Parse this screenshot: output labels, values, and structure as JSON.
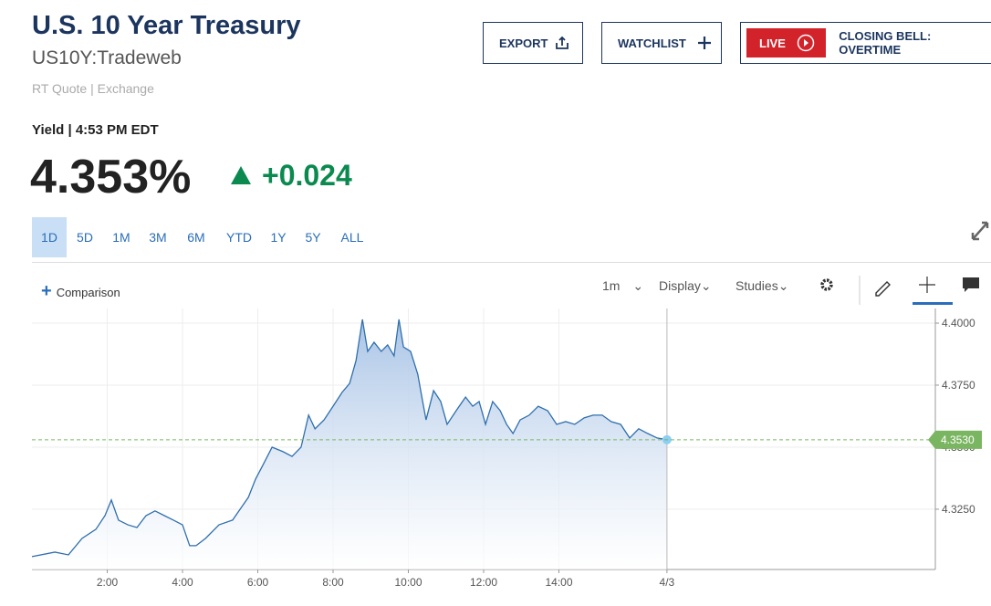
{
  "header": {
    "title": "U.S. 10 Year Treasury",
    "symbol": "US10Y:Tradeweb",
    "quote_source": "RT Quote | Exchange",
    "buttons": {
      "export": "EXPORT",
      "watchlist": "WATCHLIST",
      "live": "LIVE",
      "live_show": "CLOSING BELL: OVERTIME"
    }
  },
  "quote": {
    "label": "Yield | 4:53 PM EDT",
    "price": "4.353%",
    "change": "+0.024"
  },
  "ranges": [
    "1D",
    "5D",
    "1M",
    "3M",
    "6M",
    "YTD",
    "1Y",
    "5Y",
    "ALL"
  ],
  "toolbar": {
    "comparison": "Comparison",
    "interval": "1m",
    "display": "Display",
    "studies": "Studies"
  },
  "chart_data": {
    "type": "line",
    "x": [
      0,
      0.61,
      0.97,
      1.33,
      1.7,
      1.94,
      2.11,
      2.3,
      2.55,
      2.79,
      3.03,
      3.27,
      3.52,
      3.76,
      4.0,
      4.19,
      4.36,
      4.61,
      4.97,
      5.33,
      5.58,
      5.75,
      5.94,
      6.13,
      6.38,
      6.67,
      6.91,
      7.15,
      7.35,
      7.52,
      7.76,
      8.0,
      8.24,
      8.44,
      8.61,
      8.78,
      8.92,
      9.09,
      9.28,
      9.45,
      9.62,
      9.75,
      9.87,
      10.06,
      10.25,
      10.38,
      10.47,
      10.67,
      10.86,
      11.03,
      11.27,
      11.52,
      11.71,
      11.88,
      12.05,
      12.24,
      12.44,
      12.61,
      12.78,
      12.97,
      13.21,
      13.45,
      13.7,
      13.94,
      14.18,
      14.42,
      14.67,
      14.91,
      15.15,
      15.39,
      15.64,
      15.88,
      16.12,
      16.36,
      16.61,
      16.87
    ],
    "series": [
      {
        "color": "#2f6fad",
        "values": [
          4.3059,
          4.3077,
          4.3066,
          4.3132,
          4.3169,
          4.3224,
          4.3287,
          4.3206,
          4.3187,
          4.3176,
          4.3224,
          4.3243,
          4.3224,
          4.3206,
          4.3187,
          4.3103,
          4.3103,
          4.3132,
          4.3187,
          4.3206,
          4.3261,
          4.3298,
          4.3371,
          4.3426,
          4.35,
          4.3482,
          4.3463,
          4.35,
          4.3629,
          4.3574,
          4.361,
          4.3665,
          4.3721,
          4.3757,
          4.3849,
          4.4015,
          4.3886,
          4.3923,
          4.3886,
          4.3912,
          4.3868,
          4.4015,
          4.3904,
          4.3886,
          4.3794,
          4.3684,
          4.361,
          4.3728,
          4.3684,
          4.3592,
          4.3647,
          4.3702,
          4.3665,
          4.3684,
          4.3592,
          4.3684,
          4.3647,
          4.3592,
          4.3555,
          4.361,
          4.3629,
          4.3665,
          4.3647,
          4.3592,
          4.3603,
          4.3592,
          4.3618,
          4.3629,
          4.3629,
          4.3603,
          4.3592,
          4.3537,
          4.3574,
          4.3555,
          4.3537,
          4.353
        ]
      }
    ],
    "xlim": [
      0,
      24
    ],
    "xticks": [
      {
        "value": 2,
        "label": "2:00"
      },
      {
        "value": 4,
        "label": "4:00"
      },
      {
        "value": 6,
        "label": "6:00"
      },
      {
        "value": 8,
        "label": "8:00"
      },
      {
        "value": 10,
        "label": "10:00"
      },
      {
        "value": 12,
        "label": "12:00"
      },
      {
        "value": 14,
        "label": "14:00"
      },
      {
        "value": 16.87,
        "label": "4/3"
      }
    ],
    "ylim": [
      4.3007,
      4.4059
    ],
    "yticks": [
      {
        "value": 4.325,
        "label": "4.3250"
      },
      {
        "value": 4.35,
        "label": "4.3500"
      },
      {
        "value": 4.375,
        "label": "4.3750"
      },
      {
        "value": 4.4,
        "label": "4.4000"
      }
    ],
    "grid": true,
    "reference_line": {
      "value": 4.353,
      "label": "4.3530",
      "color": "#7ab661"
    }
  }
}
